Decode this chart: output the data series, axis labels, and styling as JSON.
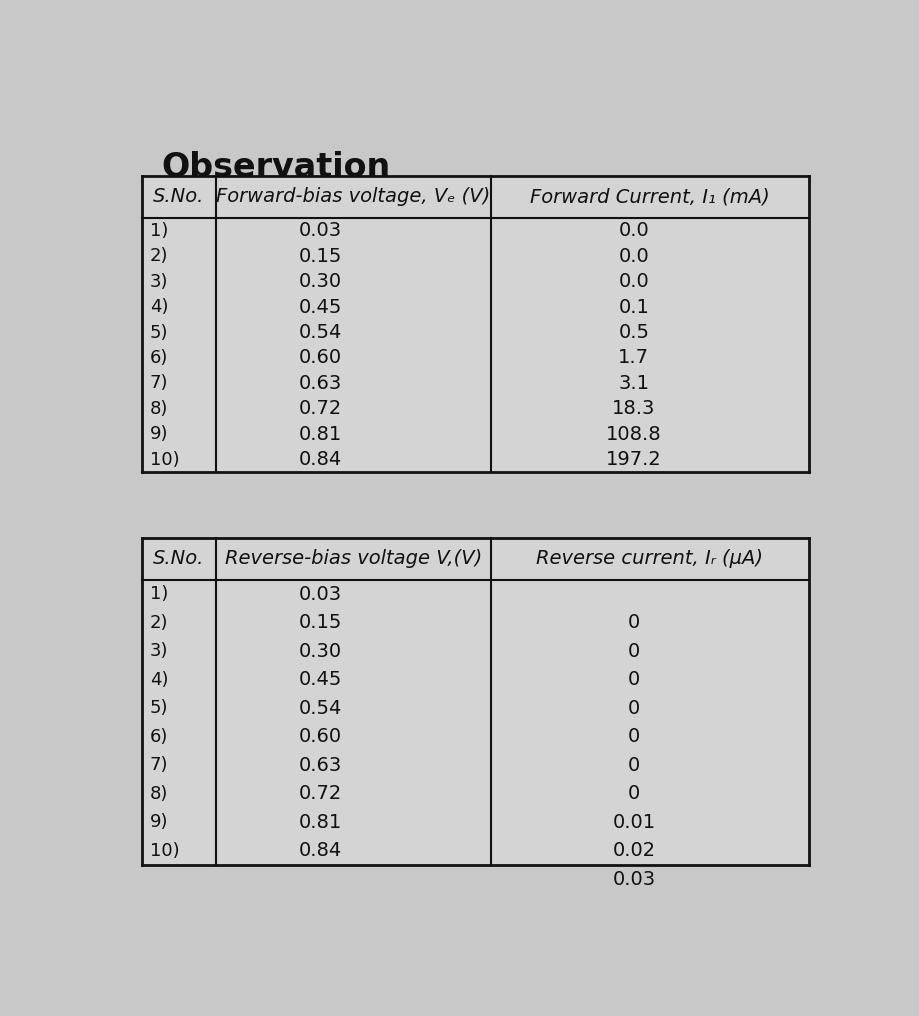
{
  "title": "Observation",
  "table1": {
    "col1_header": "S.No.",
    "col2_header": "Forward-bias voltage, Vₑ (V)",
    "col3_header": "Forward Current, I₁ (mA)",
    "serial": [
      "1)",
      "2)",
      "3)",
      "4)",
      "5)",
      "6)",
      "7)",
      "8)",
      "9)",
      "10)"
    ],
    "voltage": [
      "0.03",
      "0.15",
      "0.30",
      "0.45",
      "0.54",
      "0.60",
      "0.63",
      "0.72",
      "0.81",
      "0.84"
    ],
    "current": [
      "0.0",
      "0.0",
      "0.0",
      "0.1",
      "0.5",
      "1.7",
      "3.1",
      "18.3",
      "108.8",
      "197.2"
    ]
  },
  "table2": {
    "col1_header": "S.No.",
    "col2_header": "Reverse-bias voltage V,(V)",
    "col3_header": "Reverse current, Iᵣ (μA)",
    "serial": [
      "1)",
      "2)",
      "3)",
      "4)",
      "5)",
      "6)",
      "7)",
      "8)",
      "9)",
      "10)"
    ],
    "voltage": [
      "0.03",
      "0.15",
      "0.30",
      "0.45",
      "0.54",
      "0.60",
      "0.63",
      "0.72",
      "0.81",
      "0.84"
    ],
    "current": [
      "",
      "0",
      "0",
      "0",
      "0",
      "0",
      "0",
      "0",
      "0.01",
      "0.02"
    ],
    "current_extra": "0.03"
  },
  "bg_color": "#c8c8c8",
  "page_color": "#d9d9d9",
  "table_bg": "#d4d4d4",
  "line_color": "#111111",
  "text_color": "#111111",
  "title_fontsize": 24,
  "header_fontsize": 14,
  "cell_fontsize": 14,
  "sno_fontsize": 13
}
